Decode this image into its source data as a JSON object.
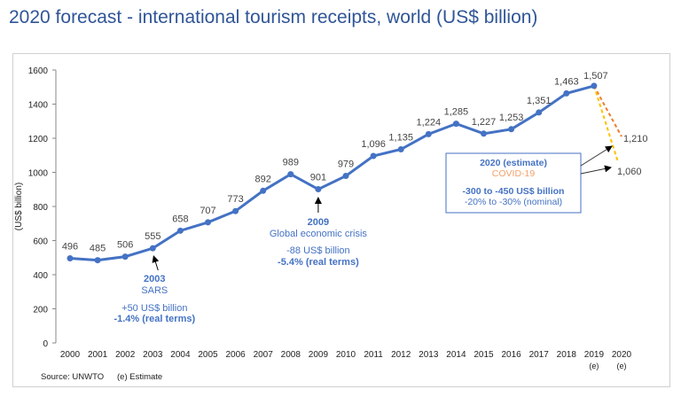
{
  "chart_data": {
    "type": "line",
    "title": "2020 forecast - international tourism receipts, world (US$ billion)",
    "ylabel": "(US$ billion)",
    "xlabel": "",
    "ylim": [
      0,
      1600
    ],
    "yticks": [
      0,
      200,
      400,
      600,
      800,
      1000,
      1200,
      1400,
      1600
    ],
    "categories": [
      "2000",
      "2001",
      "2002",
      "2003",
      "2004",
      "2005",
      "2006",
      "2007",
      "2008",
      "2009",
      "2010",
      "2011",
      "2012",
      "2013",
      "2014",
      "2015",
      "2016",
      "2017",
      "2018",
      "2019",
      "2020"
    ],
    "category_sublabels": {
      "2019": "(e)",
      "2020": "(e)"
    },
    "series": [
      {
        "values": [
          496,
          485,
          506,
          555,
          658,
          707,
          773,
          892,
          989,
          901,
          979,
          1096,
          1135,
          1224,
          1285,
          1227,
          1253,
          1351,
          1463,
          1507,
          null
        ],
        "labels": [
          "496",
          "485",
          "506",
          "555",
          "658",
          "707",
          "773",
          "892",
          "989",
          "901",
          "979",
          "1,096",
          "1,135",
          "1,224",
          "1,285",
          "1,227",
          "1,253",
          "1,351",
          "1,463",
          "1,507",
          ""
        ]
      }
    ],
    "projections": [
      {
        "from": [
          "2019",
          1507
        ],
        "to": [
          "2020",
          1210
        ],
        "label": "1,210",
        "color": "#ed7d31",
        "style": "dashed"
      },
      {
        "from": [
          "2019",
          1507
        ],
        "to": [
          "2020",
          1060
        ],
        "label": "1,060",
        "color": "#ffc000",
        "style": "dashed"
      }
    ],
    "annotations": [
      {
        "x": "2003",
        "lines": [
          "2003",
          "SARS",
          "+50 US$ billion",
          "-1.4% (real terms)"
        ]
      },
      {
        "x": "2009",
        "lines": [
          "2009",
          "Global economic crisis",
          "-88 US$ billion",
          "-5.4% (real terms)"
        ]
      },
      {
        "x": "2020",
        "lines": [
          "2020 (estimate)",
          "COVID-19",
          "-300 to -450 US$ billion",
          "-20% to -30% (nominal)"
        ]
      }
    ],
    "line_color": "#4472c4",
    "grid": false,
    "source": "Source: UNWTO",
    "note": "(e) Estimate"
  }
}
